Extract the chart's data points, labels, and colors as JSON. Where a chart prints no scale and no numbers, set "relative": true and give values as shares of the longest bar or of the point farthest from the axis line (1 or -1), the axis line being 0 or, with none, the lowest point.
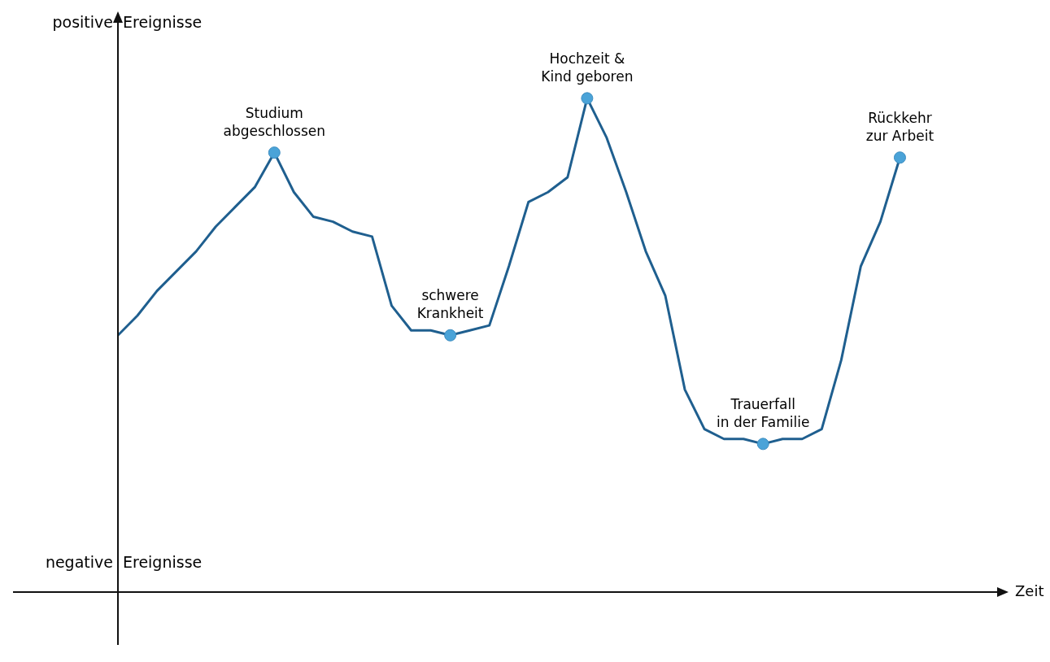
{
  "chart_data": {
    "type": "line",
    "relative": true,
    "categories": [
      null,
      null,
      null,
      null,
      null,
      null,
      null,
      null,
      null,
      null,
      null,
      null,
      null,
      null,
      null,
      null,
      null,
      null,
      null,
      null,
      null,
      null,
      null,
      null,
      null,
      null,
      null,
      null,
      null,
      null,
      null,
      null,
      null,
      null,
      null,
      null,
      null,
      null,
      null,
      null,
      null
    ],
    "series": [
      {
        "color": "#1f5f8f",
        "line_style": "solid",
        "values": [
          0.52,
          0.56,
          0.61,
          0.65,
          0.69,
          0.74,
          0.78,
          0.82,
          0.89,
          0.81,
          0.76,
          0.75,
          0.73,
          0.72,
          0.58,
          0.53,
          0.53,
          0.52,
          0.53,
          0.54,
          0.66,
          0.79,
          0.81,
          0.84,
          1,
          0.92,
          0.81,
          0.69,
          0.6,
          0.41,
          0.33,
          0.31,
          0.31,
          0.3,
          0.31,
          0.31,
          0.33,
          0.47,
          0.66,
          0.75,
          0.88
        ]
      }
    ],
    "annotations": [
      "positive Ereignisse",
      "negative Ereignisse",
      "Zeit",
      "Studium\nabgeschlossen",
      "schwere\nKrankheit",
      "Hochzeit &\nKind geboren",
      "Trauerfall\nin der Familie",
      "Rückkehr\nzur Arbeit"
    ],
    "grid": false,
    "legend": false
  }
}
